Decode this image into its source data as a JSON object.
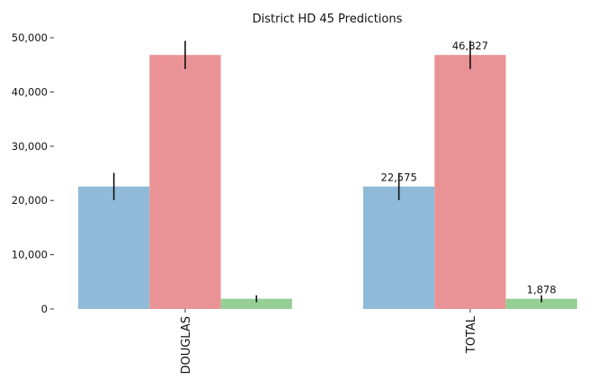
{
  "chart_data": {
    "type": "bar",
    "title": "District HD 45 Predictions",
    "categories": [
      "DOUGLAS",
      "TOTAL"
    ],
    "series": [
      {
        "color": "#8fbad8",
        "values": [
          22575,
          22575
        ],
        "err": [
          2500,
          2500
        ]
      },
      {
        "color": "#ea9396",
        "values": [
          46827,
          46827
        ],
        "err": [
          2600,
          2600
        ]
      },
      {
        "color": "#96cf96",
        "values": [
          1878,
          1878
        ],
        "err": [
          650,
          650
        ]
      }
    ],
    "data_labels": [
      {
        "category": 1,
        "series": 0,
        "text": "22,575"
      },
      {
        "category": 1,
        "series": 1,
        "text": "46,827"
      },
      {
        "category": 1,
        "series": 2,
        "text": "1,878"
      }
    ],
    "ylim": [
      0,
      50000
    ],
    "yticks": [
      0,
      10000,
      20000,
      30000,
      40000,
      50000
    ],
    "ytick_labels": [
      "0",
      "10,000",
      "20,000",
      "30,000",
      "40,000",
      "50,000"
    ],
    "grid": false,
    "error_bar_color": "#111111"
  }
}
